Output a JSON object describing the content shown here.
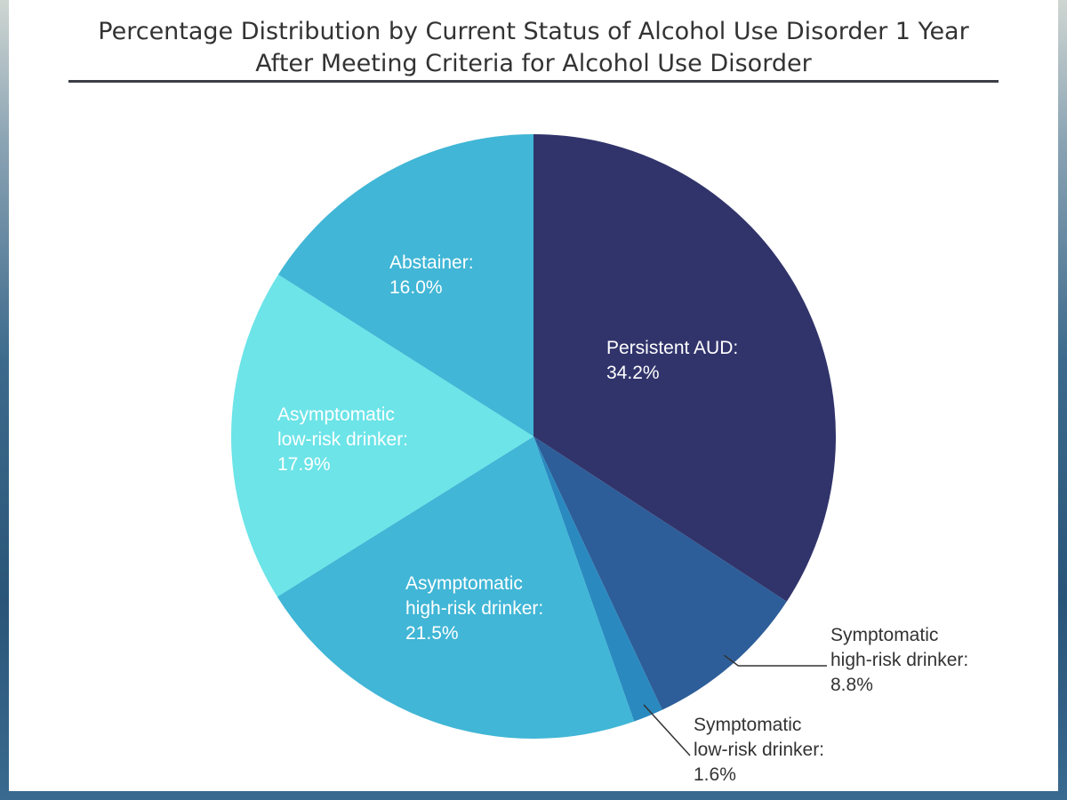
{
  "chart_data": {
    "type": "pie",
    "title_lines": [
      "Percentage Distribution by Current Status of Alcohol Use Disorder 1 Year",
      "After Meeting Criteria for Alcohol Use Disorder"
    ],
    "slices": [
      {
        "name": "Persistent AUD:",
        "value": 34.2,
        "value_label": "34.2%",
        "color": "#31346b",
        "label_lines": [
          "Persistent AUD:",
          "34.2%"
        ]
      },
      {
        "name": "Symptomatic high-risk drinker:",
        "value": 8.8,
        "value_label": "8.8%",
        "color": "#2d5e99",
        "label_lines": [
          "Symptomatic",
          "high-risk drinker:",
          "8.8%"
        ]
      },
      {
        "name": "Symptomatic low-risk drinker:",
        "value": 1.6,
        "value_label": "1.6%",
        "color": "#2a8ac0",
        "label_lines": [
          "Symptomatic",
          "low-risk drinker:",
          "1.6%"
        ]
      },
      {
        "name": "Asymptomatic high-risk drinker:",
        "value": 21.5,
        "value_label": "21.5%",
        "color": "#41b6d6",
        "label_lines": [
          "Asymptomatic",
          "high-risk drinker:",
          "21.5%"
        ]
      },
      {
        "name": "Asymptomatic low-risk drinker:",
        "value": 17.9,
        "value_label": "17.9%",
        "color": "#6ce4e8",
        "label_lines": [
          "Asymptomatic",
          "low-risk drinker:",
          "17.9%"
        ]
      },
      {
        "name": "Abstainer:",
        "value": 16.0,
        "value_label": "16.0%",
        "color": "#41b6d6",
        "label_lines": [
          "Abstainer:",
          "16.0%"
        ]
      }
    ]
  }
}
